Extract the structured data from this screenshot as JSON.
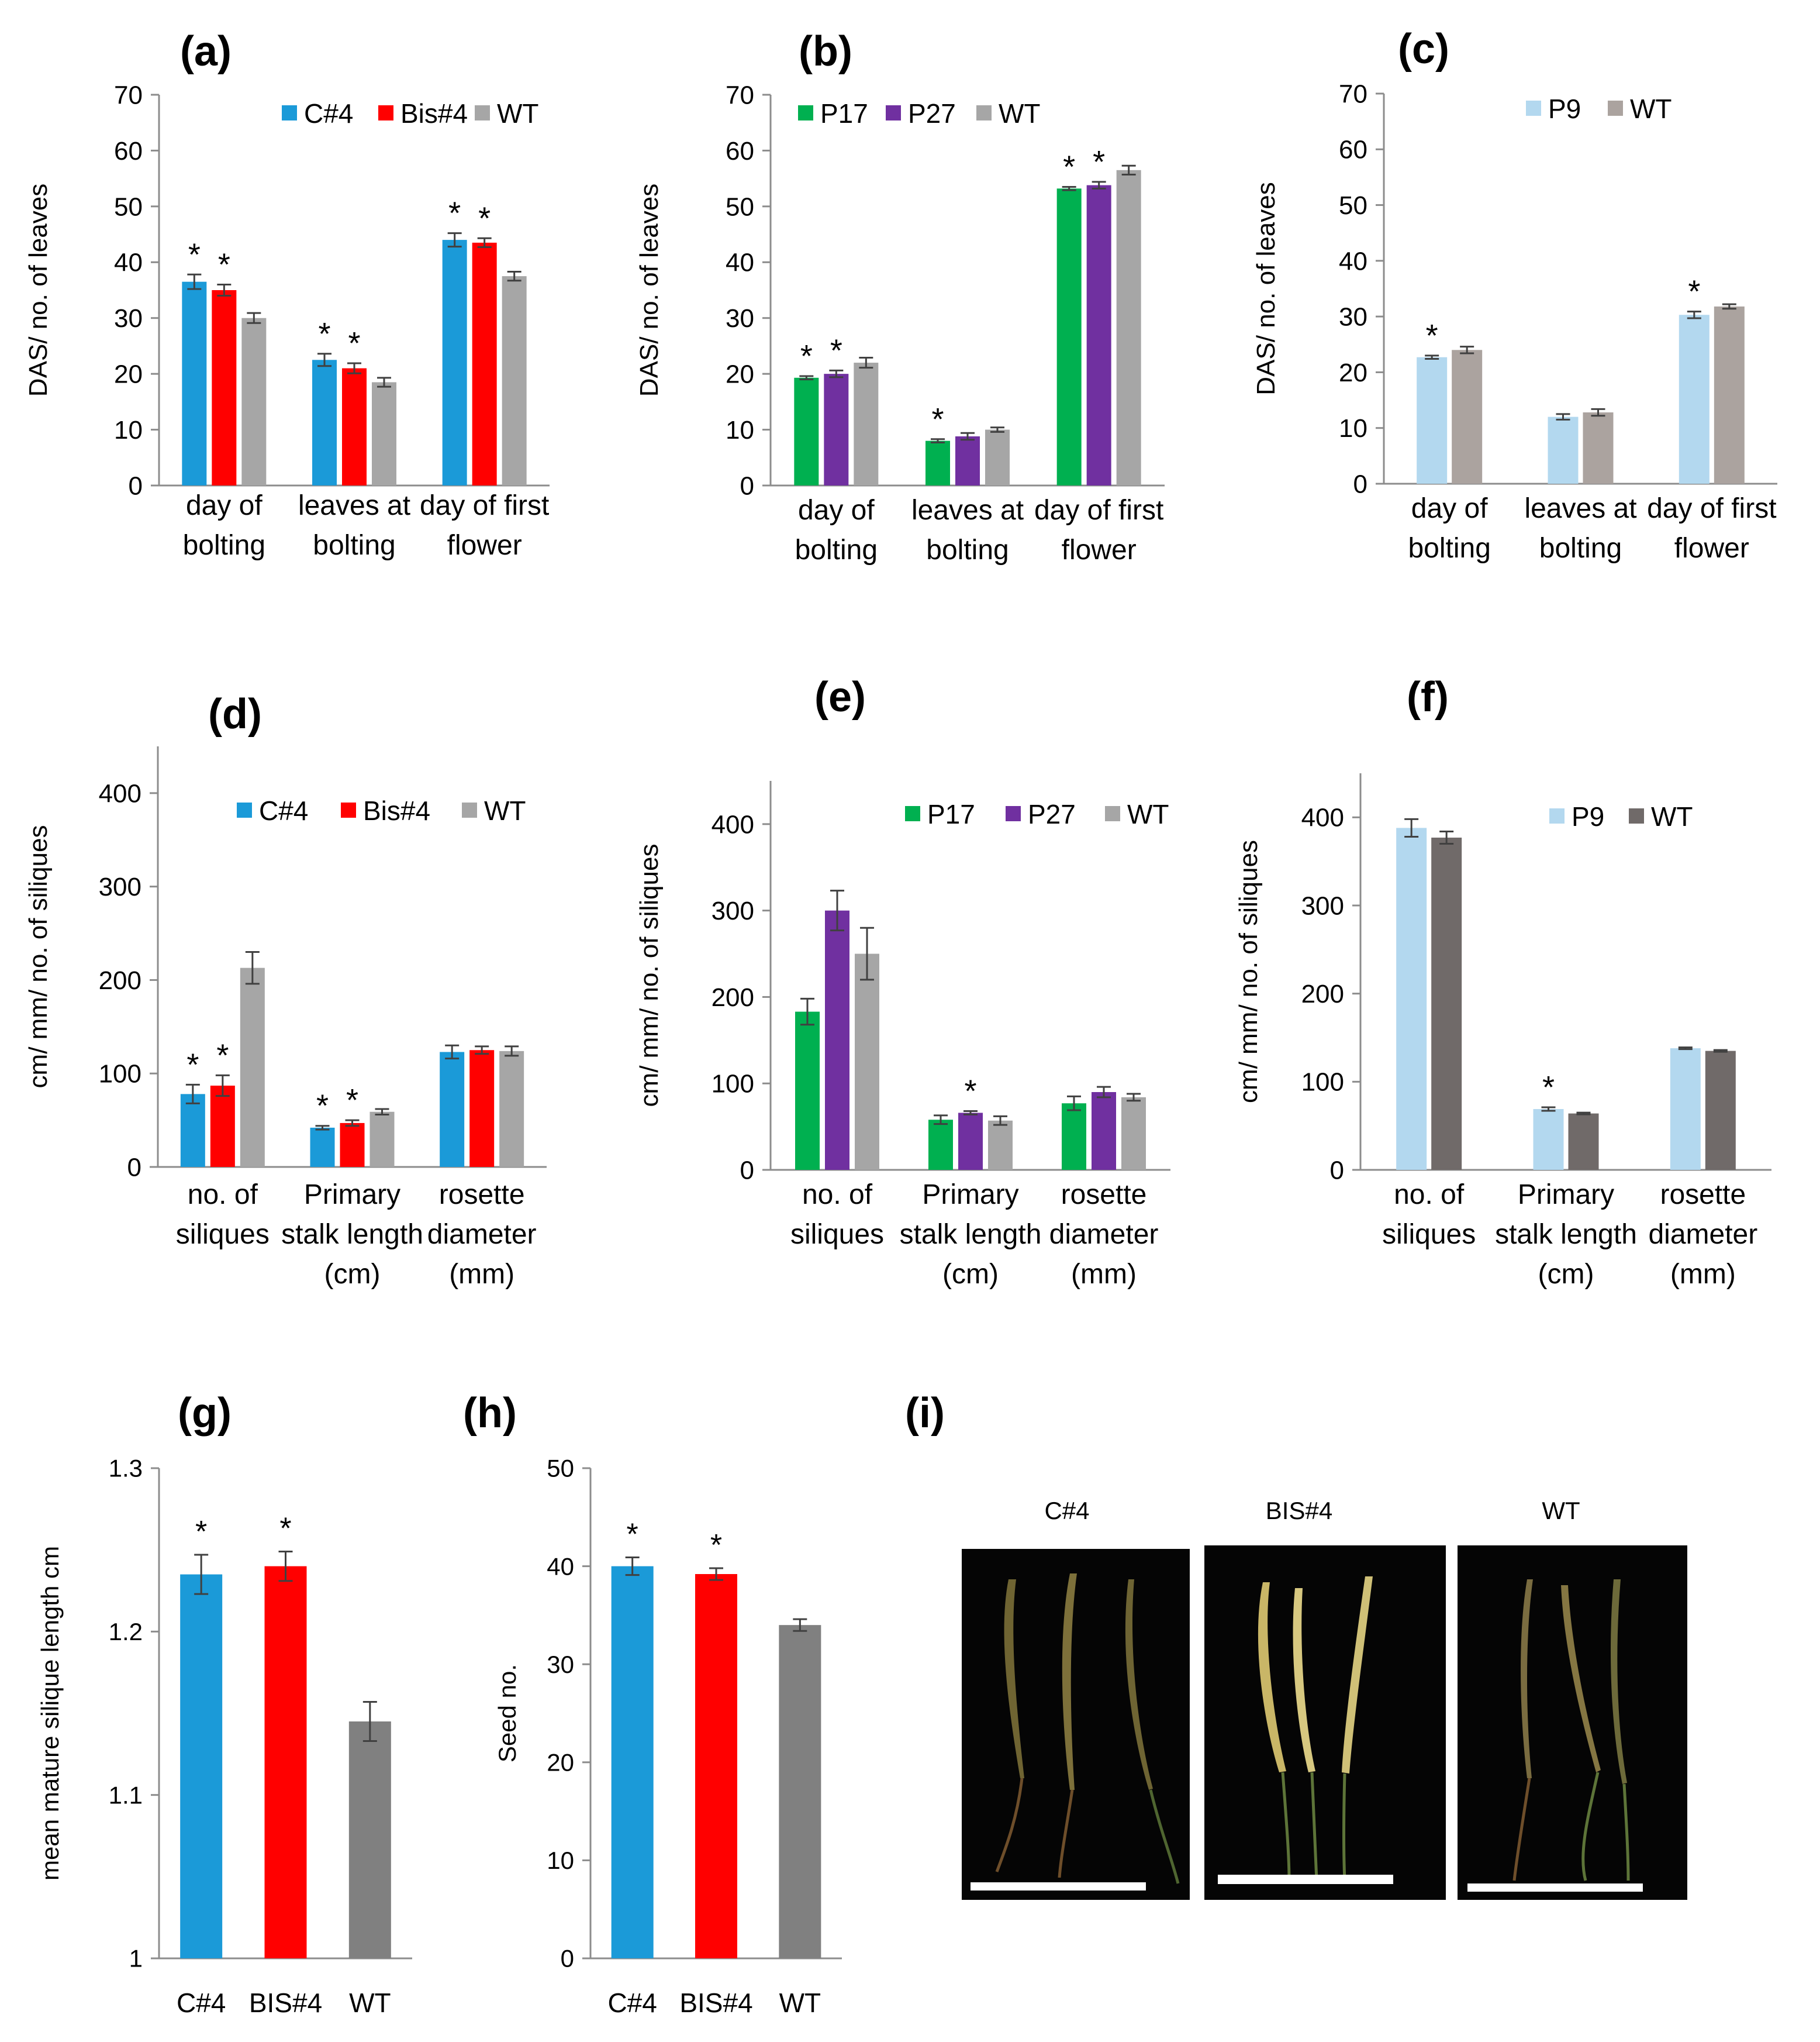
{
  "colors": {
    "blue": "#1b9ad8",
    "red": "#ff0000",
    "grey": "#a6a6a6",
    "green": "#00b050",
    "purple": "#7030a0",
    "lightblue": "#b3d8ef",
    "warmgrey": "#aba39f",
    "darkgrey": "#706a69",
    "midgrey": "#808080",
    "axis": "#8c8c8c",
    "text": "#000000"
  },
  "chart_data": [
    {
      "panel": "(a)",
      "type": "bar",
      "ylabel": "DAS/ no. of leaves",
      "ylim": [
        0,
        70
      ],
      "yticks": [
        0,
        10,
        20,
        30,
        40,
        50,
        60,
        70
      ],
      "categories": [
        [
          "day of",
          "bolting"
        ],
        [
          "leaves at",
          "bolting"
        ],
        [
          "day of first",
          "flower"
        ]
      ],
      "legend_position": "top-right",
      "series": [
        {
          "name": "C#4",
          "color_key": "blue",
          "values": [
            36.5,
            22.5,
            44
          ],
          "errors": [
            1.3,
            1.1,
            1.2
          ],
          "sig": [
            true,
            true,
            true
          ]
        },
        {
          "name": "Bis#4",
          "color_key": "red",
          "values": [
            35,
            21,
            43.5
          ],
          "errors": [
            1.0,
            0.9,
            0.8
          ],
          "sig": [
            true,
            true,
            true
          ]
        },
        {
          "name": "WT",
          "color_key": "grey",
          "values": [
            30,
            18.5,
            37.5
          ],
          "errors": [
            0.9,
            0.8,
            0.8
          ],
          "sig": [
            false,
            false,
            false
          ]
        }
      ]
    },
    {
      "panel": "(b)",
      "type": "bar",
      "ylabel": "DAS/ no. of leaves",
      "ylim": [
        0,
        70
      ],
      "yticks": [
        0,
        10,
        20,
        30,
        40,
        50,
        60,
        70
      ],
      "categories": [
        [
          "day of",
          "bolting"
        ],
        [
          "leaves at",
          "bolting"
        ],
        [
          "day of first",
          "flower"
        ]
      ],
      "legend_position": "top-left",
      "series": [
        {
          "name": "P17",
          "color_key": "green",
          "values": [
            19.3,
            8,
            53.2
          ],
          "errors": [
            0.3,
            0.3,
            0.3
          ],
          "sig": [
            true,
            true,
            true
          ]
        },
        {
          "name": "P27",
          "color_key": "purple",
          "values": [
            20,
            8.8,
            53.8
          ],
          "errors": [
            0.6,
            0.6,
            0.6
          ],
          "sig": [
            true,
            false,
            true
          ]
        },
        {
          "name": "WT",
          "color_key": "grey",
          "values": [
            22,
            10,
            56.5
          ],
          "errors": [
            0.9,
            0.4,
            0.8
          ],
          "sig": [
            false,
            false,
            false
          ]
        }
      ]
    },
    {
      "panel": "(c)",
      "type": "bar",
      "ylabel": "DAS/ no. of leaves",
      "ylim": [
        0,
        70
      ],
      "yticks": [
        0,
        10,
        20,
        30,
        40,
        50,
        60,
        70
      ],
      "categories": [
        [
          "day of",
          "bolting"
        ],
        [
          "leaves at",
          "bolting"
        ],
        [
          "day of first",
          "flower"
        ]
      ],
      "legend_position": "top-right",
      "series": [
        {
          "name": "P9",
          "color_key": "lightblue",
          "values": [
            22.7,
            12,
            30.3
          ],
          "errors": [
            0.3,
            0.5,
            0.6
          ],
          "sig": [
            true,
            false,
            true
          ]
        },
        {
          "name": "WT",
          "color_key": "warmgrey",
          "values": [
            24,
            12.8,
            31.8
          ],
          "errors": [
            0.6,
            0.6,
            0.4
          ],
          "sig": [
            false,
            false,
            false
          ]
        }
      ]
    },
    {
      "panel": "(d)",
      "type": "bar",
      "ylabel": "cm/ mm/ no. of siliques",
      "ylim": [
        0,
        450
      ],
      "yticks": [
        0,
        100,
        200,
        300,
        400
      ],
      "categories": [
        [
          "no. of",
          "siliques"
        ],
        [
          "Primary",
          "stalk length",
          "(cm)"
        ],
        [
          "rosette",
          "diameter",
          "(mm)"
        ]
      ],
      "legend_position": "top-right",
      "series": [
        {
          "name": "C#4",
          "color_key": "blue",
          "values": [
            78,
            42,
            123
          ],
          "errors": [
            10,
            2,
            7
          ],
          "sig": [
            true,
            true,
            false
          ]
        },
        {
          "name": "Bis#4",
          "color_key": "red",
          "values": [
            87,
            47,
            125
          ],
          "errors": [
            11,
            3,
            4
          ],
          "sig": [
            true,
            true,
            false
          ]
        },
        {
          "name": "WT",
          "color_key": "grey",
          "values": [
            213,
            59,
            124
          ],
          "errors": [
            17,
            3,
            5
          ],
          "sig": [
            false,
            false,
            false
          ]
        }
      ]
    },
    {
      "panel": "(e)",
      "type": "bar",
      "ylabel": "cm/ mm/ no. of siliques",
      "ylim": [
        0,
        450
      ],
      "yticks": [
        0,
        100,
        200,
        300,
        400
      ],
      "categories": [
        [
          "no. of",
          "siliques"
        ],
        [
          "Primary",
          "stalk length",
          "(cm)"
        ],
        [
          "rosette",
          "diameter",
          "(mm)"
        ]
      ],
      "legend_position": "top-right",
      "series": [
        {
          "name": "P17",
          "color_key": "green",
          "values": [
            183,
            58,
            77
          ],
          "errors": [
            15,
            5,
            8
          ],
          "sig": [
            false,
            false,
            false
          ]
        },
        {
          "name": "P27",
          "color_key": "purple",
          "values": [
            300,
            66,
            90
          ],
          "errors": [
            23,
            2,
            6
          ],
          "sig": [
            false,
            true,
            false
          ]
        },
        {
          "name": "WT",
          "color_key": "grey",
          "values": [
            250,
            57,
            84
          ],
          "errors": [
            30,
            5,
            4
          ],
          "sig": [
            false,
            false,
            false
          ]
        }
      ]
    },
    {
      "panel": "(f)",
      "type": "bar",
      "ylabel": "cm/ mm/ no. of siliques",
      "ylim": [
        0,
        450
      ],
      "yticks": [
        0,
        100,
        200,
        300,
        400
      ],
      "categories": [
        [
          "no. of",
          "siliques"
        ],
        [
          "Primary",
          "stalk length",
          "(cm)"
        ],
        [
          "rosette",
          "diameter",
          "(mm)"
        ]
      ],
      "legend_position": "top-right",
      "series": [
        {
          "name": "P9",
          "color_key": "lightblue",
          "values": [
            388,
            69,
            138
          ],
          "errors": [
            10,
            2,
            1
          ],
          "sig": [
            false,
            true,
            false
          ]
        },
        {
          "name": "WT",
          "color_key": "darkgrey",
          "values": [
            377,
            64,
            135
          ],
          "errors": [
            7,
            1,
            1
          ],
          "sig": [
            false,
            false,
            false
          ]
        }
      ]
    },
    {
      "panel": "(g)",
      "type": "bar",
      "ylabel": "mean mature silique length cm",
      "ylim": [
        1,
        1.3
      ],
      "yticks": [
        1,
        1.1,
        1.2,
        1.3
      ],
      "categories": [
        "C#4",
        "BIS#4",
        "WT"
      ],
      "values": [
        1.235,
        1.24,
        1.145
      ],
      "errors": [
        0.012,
        0.009,
        0.012
      ],
      "sig": [
        true,
        true,
        false
      ],
      "color_keys": [
        "blue",
        "red",
        "midgrey"
      ]
    },
    {
      "panel": "(h)",
      "type": "bar",
      "ylabel": "Seed no.",
      "ylim": [
        0,
        50
      ],
      "yticks": [
        0,
        10,
        20,
        30,
        40,
        50
      ],
      "categories": [
        "C#4",
        "BIS#4",
        "WT"
      ],
      "values": [
        40,
        39.2,
        34
      ],
      "errors": [
        0.9,
        0.6,
        0.6
      ],
      "sig": [
        true,
        true,
        false
      ],
      "color_keys": [
        "blue",
        "red",
        "midgrey"
      ]
    }
  ],
  "photo_panel": {
    "panel": "(i)",
    "labels": [
      "C#4",
      "BIS#4",
      "WT"
    ]
  }
}
